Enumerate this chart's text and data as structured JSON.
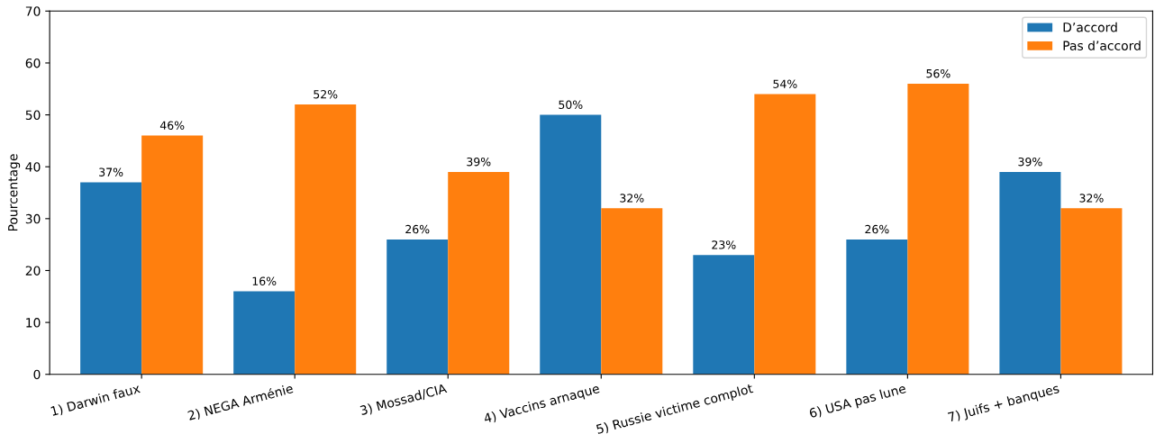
{
  "chart_data": {
    "type": "bar",
    "ylabel": "Pourcentage",
    "categories": [
      "1) Darwin faux",
      "2) NEGA Arménie",
      "3) Mossad/CIA",
      "4) Vaccins arnaque",
      "5) Russie victime complot",
      "6) USA pas lune",
      "7) Juifs + banques"
    ],
    "series": [
      {
        "name": "D’accord",
        "color": "#1f77b4",
        "values": [
          37,
          16,
          26,
          50,
          23,
          26,
          39
        ],
        "value_labels": [
          "37%",
          "16%",
          "26%",
          "50%",
          "23%",
          "26%",
          "39%"
        ]
      },
      {
        "name": "Pas d’accord",
        "color": "#ff7f0e",
        "values": [
          46,
          52,
          39,
          32,
          54,
          56,
          32
        ],
        "value_labels": [
          "46%",
          "52%",
          "39%",
          "32%",
          "54%",
          "56%",
          "32%"
        ]
      }
    ],
    "ylim": [
      0,
      70
    ],
    "yticks": [
      0,
      10,
      20,
      30,
      40,
      50,
      60,
      70
    ],
    "grid": false,
    "legend": "top right"
  }
}
